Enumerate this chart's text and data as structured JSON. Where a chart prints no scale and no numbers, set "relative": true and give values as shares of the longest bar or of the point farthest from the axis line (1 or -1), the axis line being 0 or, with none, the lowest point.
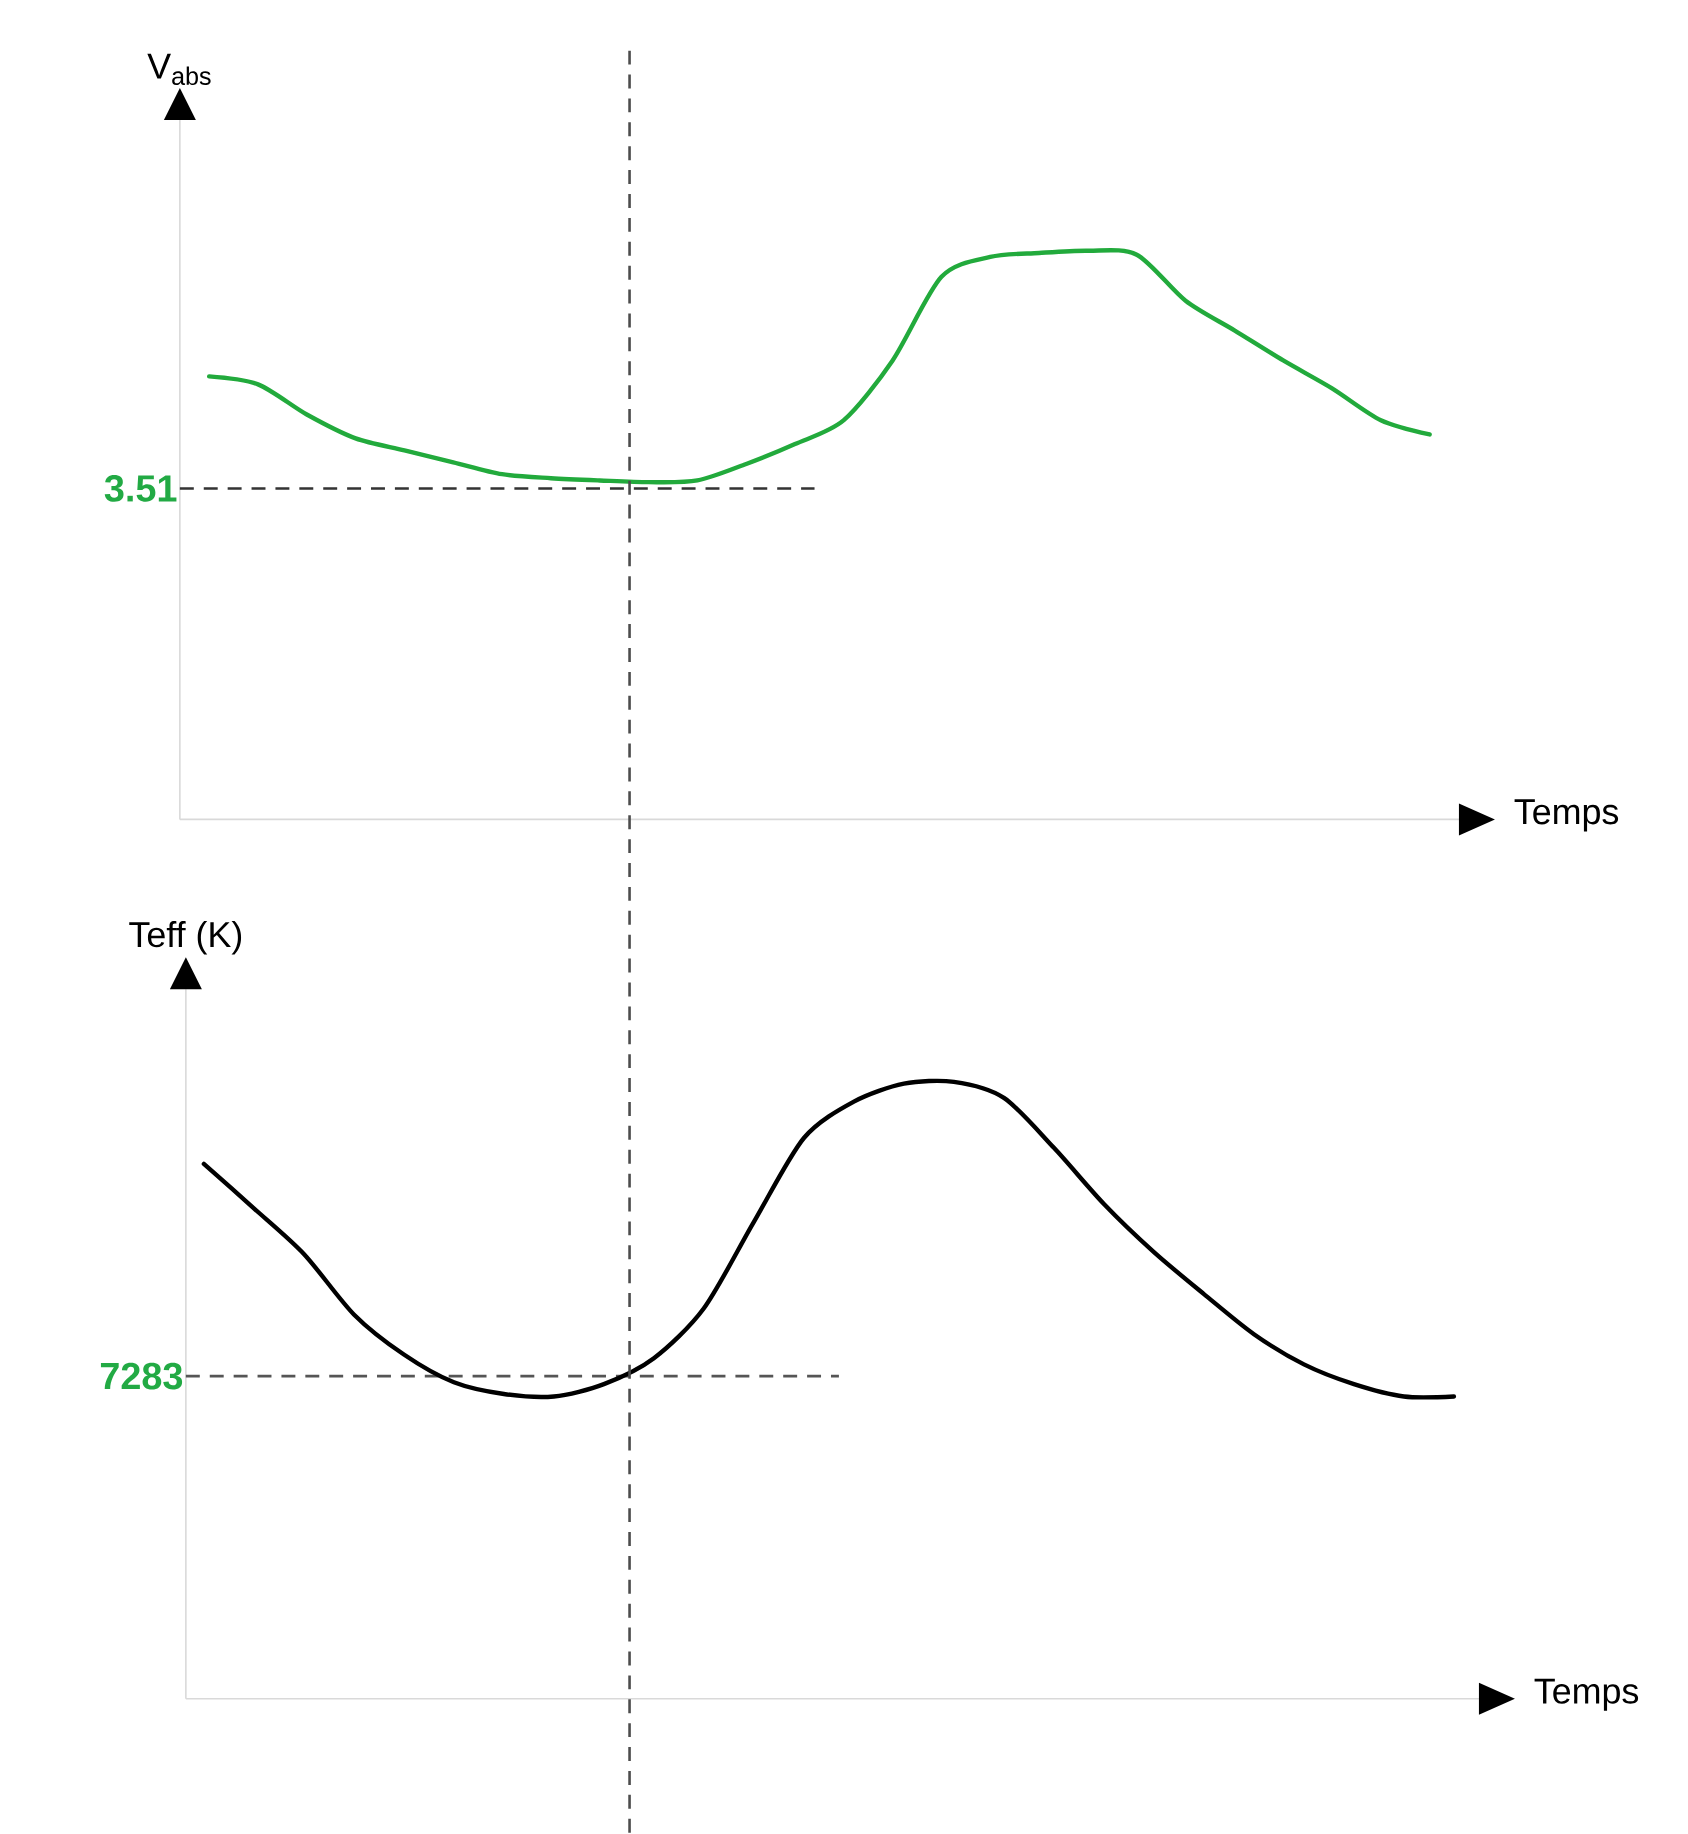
{
  "chart_data": [
    {
      "type": "line",
      "relative": true,
      "ylabel": "V$_{abs}$",
      "xlabel": "Temps",
      "categories": [
        null,
        null,
        null,
        null,
        null,
        null,
        null,
        null,
        null,
        null,
        null,
        null,
        null,
        null,
        null,
        null,
        null,
        null,
        null,
        null,
        null,
        null,
        null,
        null,
        null,
        null
      ],
      "series": [
        {
          "color": "#22aa3c",
          "values": [
            0.779,
            0.765,
            0.712,
            0.67,
            0.649,
            0.628,
            0.607,
            0.6,
            0.596,
            0.593,
            0.596,
            0.625,
            0.66,
            0.702,
            0.807,
            0.954,
            0.989,
            0.996,
            1.0,
            0.993,
            0.912,
            0.86,
            0.807,
            0.758,
            0.702,
            0.677
          ]
        }
      ],
      "ref_lines": [
        {
          "axis": "y",
          "value": 0.582,
          "color": "#333333",
          "line_style": "dashed"
        }
      ],
      "annotations": [
        "3.51"
      ]
    },
    {
      "type": "line",
      "relative": true,
      "ylabel": "Teff (K)",
      "xlabel": "Temps",
      "categories": [
        null,
        null,
        null,
        null,
        null,
        null,
        null,
        null,
        null,
        null,
        null,
        null,
        null,
        null,
        null,
        null,
        null,
        null,
        null,
        null,
        null,
        null,
        null,
        null,
        null,
        null
      ],
      "series": [
        {
          "color": "#000000",
          "values": [
            0.867,
            0.795,
            0.721,
            0.623,
            0.558,
            0.513,
            0.494,
            0.49,
            0.51,
            0.552,
            0.633,
            0.773,
            0.909,
            0.968,
            0.997,
            1.0,
            0.974,
            0.893,
            0.802,
            0.724,
            0.656,
            0.591,
            0.542,
            0.51,
            0.49,
            0.49
          ]
        }
      ],
      "ref_lines": [
        {
          "axis": "y",
          "value": 0.523,
          "color": "#555555",
          "line_style": "dashed"
        }
      ],
      "annotations": [
        "7283"
      ]
    }
  ]
}
